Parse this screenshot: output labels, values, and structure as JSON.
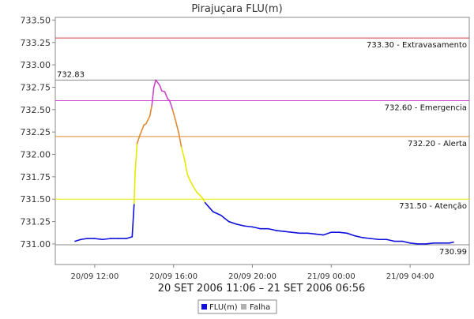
{
  "chart_data": {
    "type": "line",
    "title": "Pirajuçara FLU(m)",
    "xlabel": "20 SET 2006 11:06 – 21 SET 2006 06:56",
    "ylabel": "",
    "ylim": [
      730.77,
      733.53
    ],
    "y_ticks": [
      "733.50",
      "733.25",
      "733.00",
      "732.75",
      "732.50",
      "732.25",
      "732.00",
      "731.75",
      "731.50",
      "731.25",
      "731.00"
    ],
    "x_ticks": [
      "20/09 12:00",
      "20/09 16:00",
      "20/09 20:00",
      "21/09 00:00",
      "21/09 04:00"
    ],
    "x_axis_hours": {
      "start": 10.0,
      "end": 31.0,
      "tick_values": [
        12,
        16,
        20,
        24,
        28
      ]
    },
    "grid": false,
    "legend_position": "bottom-center",
    "legend": [
      {
        "label": "FLU(m)",
        "color": "#1010dd"
      },
      {
        "label": "Falha",
        "color": "#b0b0b0"
      }
    ],
    "threshold_lines": [
      {
        "value": 733.3,
        "label": "733.30 - Extravasamento",
        "color": "#d04040"
      },
      {
        "value": 732.83,
        "label": "732.83",
        "color": "#888888"
      },
      {
        "value": 732.6,
        "label": "732.60 - Emergencia",
        "color": "#cc44cc"
      },
      {
        "value": 732.2,
        "label": "732.20 - Alerta",
        "color": "#e08a30"
      },
      {
        "value": 731.5,
        "label": "731.50 - Atenção",
        "color": "#e8e800"
      },
      {
        "value": 730.99,
        "label": "730.99",
        "color": "#888888"
      }
    ],
    "series": [
      {
        "name": "FLU(m)",
        "x_hours": [
          11.0,
          11.3,
          11.6,
          12.0,
          12.4,
          12.8,
          13.2,
          13.6,
          13.9,
          14.0,
          14.05,
          14.15,
          14.3,
          14.5,
          14.6,
          14.8,
          14.9,
          15.0,
          15.1,
          15.2,
          15.3,
          15.4,
          15.55,
          15.7,
          15.8,
          15.95,
          16.1,
          16.25,
          16.4,
          16.55,
          16.7,
          16.85,
          17.0,
          17.2,
          17.4,
          17.5,
          17.6,
          17.8,
          18.0,
          18.4,
          18.8,
          19.2,
          19.6,
          20.0,
          20.4,
          20.8,
          21.2,
          21.6,
          22.0,
          22.4,
          22.8,
          23.2,
          23.6,
          24.0,
          24.4,
          24.8,
          25.2,
          25.6,
          26.0,
          26.4,
          26.8,
          27.2,
          27.6,
          28.0,
          28.4,
          28.8,
          29.2,
          29.6,
          30.0,
          30.2
        ],
        "values": [
          731.03,
          731.05,
          731.06,
          731.06,
          731.05,
          731.06,
          731.06,
          731.06,
          731.08,
          731.45,
          731.8,
          732.12,
          732.22,
          732.33,
          732.34,
          732.43,
          732.55,
          732.75,
          732.83,
          732.8,
          732.77,
          732.71,
          732.7,
          732.62,
          732.6,
          732.5,
          732.38,
          732.25,
          732.08,
          731.95,
          731.78,
          731.7,
          731.64,
          731.57,
          731.53,
          731.5,
          731.46,
          731.41,
          731.36,
          731.32,
          731.25,
          731.22,
          731.2,
          731.19,
          731.17,
          731.17,
          731.15,
          731.14,
          731.13,
          731.12,
          731.12,
          731.11,
          731.1,
          731.13,
          731.13,
          731.12,
          731.09,
          731.07,
          731.06,
          731.05,
          731.05,
          731.03,
          731.03,
          731.01,
          731.0,
          731.0,
          731.01,
          731.01,
          731.01,
          731.02
        ]
      }
    ]
  }
}
